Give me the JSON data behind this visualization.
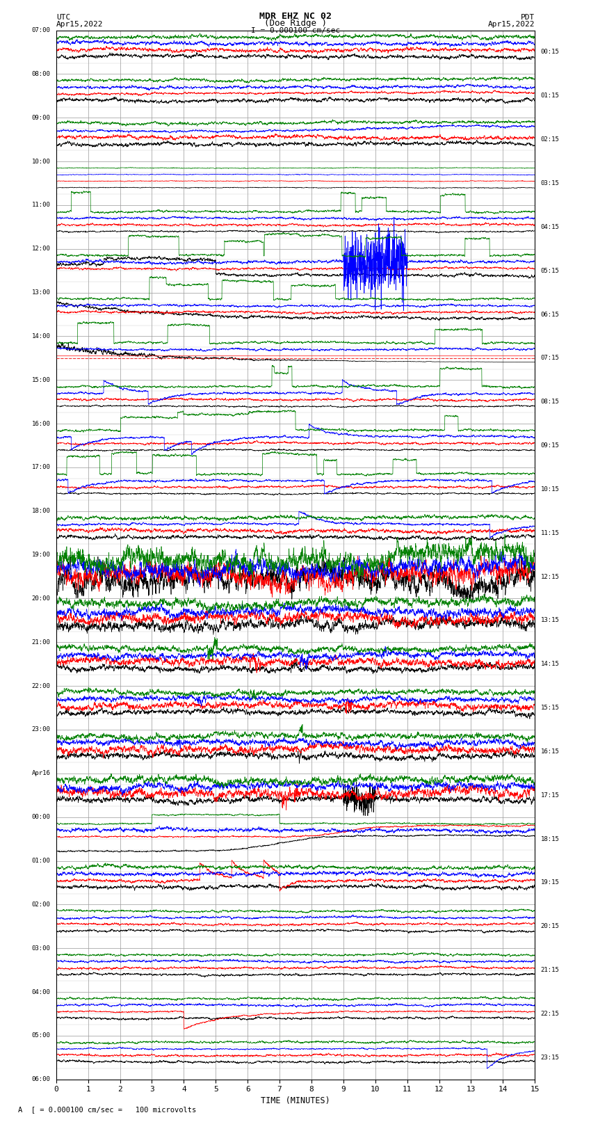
{
  "title_line1": "MDR EHZ NC 02",
  "title_line2": "(Doe Ridge )",
  "scale_label": "I = 0.000100 cm/sec",
  "bottom_label": "A  [ = 0.000100 cm/sec =   100 microvolts",
  "utc_label": "UTC",
  "utc_date": "Apr15,2022",
  "pdt_label": "PDT",
  "pdt_date": "Apr15,2022",
  "xlabel": "TIME (MINUTES)",
  "xmin": 0,
  "xmax": 15,
  "xticks": [
    0,
    1,
    2,
    3,
    4,
    5,
    6,
    7,
    8,
    9,
    10,
    11,
    12,
    13,
    14,
    15
  ],
  "bg_color": "#ffffff",
  "grid_color": "#999999",
  "trace_colors": [
    "black",
    "red",
    "blue",
    "green"
  ],
  "left_times": [
    "07:00",
    "08:00",
    "09:00",
    "10:00",
    "11:00",
    "12:00",
    "13:00",
    "14:00",
    "15:00",
    "16:00",
    "17:00",
    "18:00",
    "19:00",
    "20:00",
    "21:00",
    "22:00",
    "23:00",
    "Apr16",
    "00:00",
    "01:00",
    "02:00",
    "03:00",
    "04:00",
    "05:00",
    "06:00"
  ],
  "right_times": [
    "00:15",
    "01:15",
    "02:15",
    "03:15",
    "04:15",
    "05:15",
    "06:15",
    "07:15",
    "08:15",
    "09:15",
    "10:15",
    "11:15",
    "12:15",
    "13:15",
    "14:15",
    "15:15",
    "16:15",
    "17:15",
    "18:15",
    "19:15",
    "20:15",
    "21:15",
    "22:15",
    "23:15"
  ],
  "n_hour_rows": 24,
  "traces_per_row": 4,
  "red_dashed_row": 7
}
